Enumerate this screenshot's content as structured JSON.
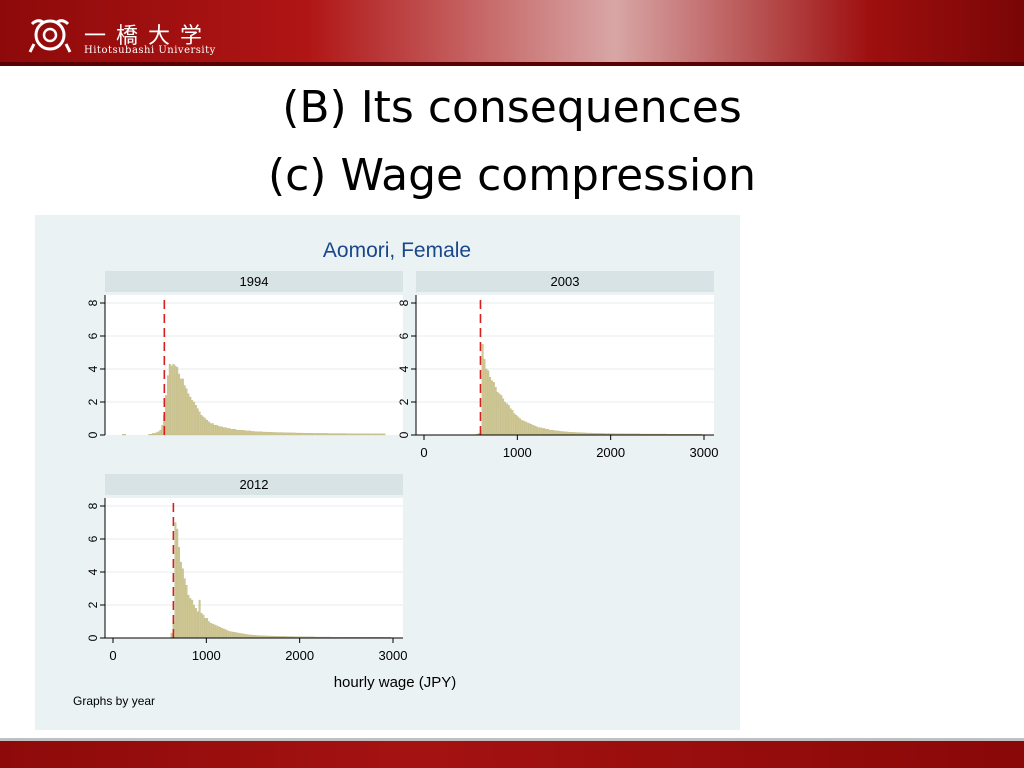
{
  "header": {
    "logo_jp": "一橋大学",
    "logo_en": "Hitotsubashi University"
  },
  "slide": {
    "title_line1": "(B) Its consequences",
    "title_line2": "(c) Wage compression"
  },
  "chart_data": {
    "type": "bar",
    "title": "Aomori, Female",
    "xlabel": "hourly wage (JPY)",
    "ylabel": "",
    "note": "Graphs by year",
    "xlim": [
      0,
      3000
    ],
    "ylim": [
      0,
      8
    ],
    "xticks": [
      0,
      1000,
      2000,
      3000
    ],
    "yticks": [
      0,
      2,
      4,
      6,
      8
    ],
    "grid": true,
    "bin_width": 20,
    "colors": {
      "bar": "#cfc894",
      "bar_edge": "#b9b27a",
      "min_wage_line": "#d42020",
      "strip": "#d8e3e6",
      "plot_bg": "#ffffff"
    },
    "panels": [
      {
        "year": "1994",
        "min_wage": 550,
        "bins_x": [
          0,
          20,
          40,
          60,
          80,
          100,
          120,
          140,
          160,
          180,
          200,
          220,
          240,
          260,
          280,
          300,
          320,
          340,
          360,
          380,
          400,
          420,
          440,
          460,
          480,
          500,
          520,
          540,
          560,
          580,
          600,
          620,
          640,
          660,
          680,
          700,
          720,
          740,
          760,
          780,
          800,
          820,
          840,
          860,
          880,
          900,
          920,
          940,
          960,
          980,
          1000,
          1020,
          1040,
          1060,
          1080,
          1100,
          1120,
          1140,
          1160,
          1180,
          1200,
          1220,
          1240,
          1260,
          1280,
          1300,
          1320,
          1340,
          1360,
          1380,
          1400,
          1420,
          1440,
          1460,
          1480,
          1500,
          1520,
          1540,
          1560,
          1580,
          1600,
          1620,
          1640,
          1660,
          1680,
          1700,
          1720,
          1740,
          1760,
          1780,
          1800,
          1820,
          1840,
          1860,
          1880,
          1900,
          1920,
          1940,
          1960,
          1980,
          2000,
          2020,
          2040,
          2060,
          2080,
          2100,
          2120,
          2140,
          2160,
          2180,
          2200,
          2220,
          2240,
          2260,
          2280,
          2300,
          2320,
          2340,
          2360,
          2380,
          2400,
          2420,
          2440,
          2460,
          2480,
          2500,
          2520,
          2540,
          2560,
          2580,
          2600,
          2620,
          2640,
          2660,
          2680,
          2700,
          2720,
          2740,
          2760,
          2780,
          2800,
          2820,
          2840,
          2860,
          2880,
          2900,
          2920,
          2940,
          2960,
          2980
        ],
        "density": [
          0,
          0,
          0,
          0,
          0,
          0.05,
          0.05,
          0,
          0,
          0,
          0,
          0,
          0,
          0,
          0,
          0,
          0,
          0,
          0,
          0.05,
          0.05,
          0.1,
          0.1,
          0.15,
          0.2,
          0.3,
          0.6,
          1.2,
          2.4,
          3.6,
          4.3,
          4.2,
          4.3,
          4.2,
          4.1,
          3.7,
          3.4,
          3.4,
          3.0,
          2.8,
          2.5,
          2.3,
          2.1,
          2.0,
          1.8,
          1.6,
          1.4,
          1.2,
          1.1,
          1.0,
          0.9,
          0.8,
          0.7,
          0.7,
          0.6,
          0.6,
          0.55,
          0.5,
          0.5,
          0.45,
          0.45,
          0.4,
          0.4,
          0.35,
          0.35,
          0.35,
          0.3,
          0.3,
          0.3,
          0.28,
          0.28,
          0.25,
          0.25,
          0.25,
          0.22,
          0.22,
          0.2,
          0.2,
          0.2,
          0.2,
          0.18,
          0.18,
          0.18,
          0.17,
          0.17,
          0.16,
          0.16,
          0.15,
          0.15,
          0.15,
          0.15,
          0.14,
          0.14,
          0.14,
          0.14,
          0.13,
          0.13,
          0.13,
          0.12,
          0.12,
          0.12,
          0.12,
          0.11,
          0.11,
          0.11,
          0.11,
          0.11,
          0.1,
          0.1,
          0.1,
          0.1,
          0.1,
          0.1,
          0.1,
          0.1,
          0.09,
          0.09,
          0.09,
          0.09,
          0.09,
          0.09,
          0.09,
          0.09,
          0.09,
          0.09,
          0.08,
          0.08,
          0.08,
          0.08,
          0.08,
          0.08,
          0.08,
          0.08,
          0.08,
          0.08,
          0.08,
          0.08,
          0.07,
          0.07,
          0.07,
          0.07,
          0.07,
          0.07,
          0.07,
          0.07,
          0.07
        ]
      },
      {
        "year": "2003",
        "min_wage": 605,
        "bins_x": [
          0,
          20,
          40,
          60,
          80,
          100,
          120,
          140,
          160,
          180,
          200,
          220,
          240,
          260,
          280,
          300,
          320,
          340,
          360,
          380,
          400,
          420,
          440,
          460,
          480,
          500,
          520,
          540,
          560,
          580,
          600,
          620,
          640,
          660,
          680,
          700,
          720,
          740,
          760,
          780,
          800,
          820,
          840,
          860,
          880,
          900,
          920,
          940,
          960,
          980,
          1000,
          1020,
          1040,
          1060,
          1080,
          1100,
          1120,
          1140,
          1160,
          1180,
          1200,
          1220,
          1240,
          1260,
          1280,
          1300,
          1320,
          1340,
          1360,
          1380,
          1400,
          1420,
          1440,
          1460,
          1480,
          1500,
          1520,
          1540,
          1560,
          1580,
          1600,
          1620,
          1640,
          1660,
          1680,
          1700,
          1720,
          1740,
          1760,
          1780,
          1800,
          1820,
          1840,
          1860,
          1880,
          1900,
          1920,
          1940,
          1960,
          1980,
          2000,
          2020,
          2040,
          2060,
          2080,
          2100,
          2120,
          2140,
          2160,
          2180,
          2200,
          2220,
          2240,
          2260,
          2280,
          2300,
          2320,
          2340,
          2360,
          2380,
          2400,
          2420,
          2440,
          2460,
          2480,
          2500,
          2520,
          2540,
          2560,
          2580,
          2600,
          2620,
          2640,
          2660,
          2680,
          2700,
          2720,
          2740,
          2760,
          2780,
          2800,
          2820,
          2840,
          2860,
          2880,
          2900,
          2920,
          2940,
          2960,
          2980
        ],
        "density": [
          0,
          0,
          0,
          0,
          0,
          0,
          0,
          0,
          0,
          0,
          0,
          0,
          0,
          0,
          0,
          0,
          0,
          0,
          0,
          0,
          0,
          0,
          0,
          0,
          0,
          0,
          0,
          0,
          0.05,
          0.1,
          0.3,
          5.5,
          4.6,
          4.0,
          3.9,
          3.5,
          3.3,
          3.2,
          2.9,
          2.6,
          2.5,
          2.4,
          2.2,
          2.0,
          1.9,
          1.8,
          1.6,
          1.5,
          1.3,
          1.2,
          1.1,
          1.0,
          0.9,
          0.85,
          0.8,
          0.75,
          0.7,
          0.65,
          0.6,
          0.55,
          0.5,
          0.45,
          0.45,
          0.4,
          0.4,
          0.35,
          0.35,
          0.3,
          0.3,
          0.28,
          0.26,
          0.25,
          0.24,
          0.22,
          0.21,
          0.2,
          0.19,
          0.18,
          0.17,
          0.16,
          0.16,
          0.15,
          0.15,
          0.14,
          0.14,
          0.13,
          0.13,
          0.12,
          0.12,
          0.12,
          0.11,
          0.11,
          0.11,
          0.1,
          0.1,
          0.1,
          0.1,
          0.09,
          0.09,
          0.09,
          0.09,
          0.09,
          0.08,
          0.08,
          0.08,
          0.08,
          0.08,
          0.08,
          0.07,
          0.07,
          0.07,
          0.07,
          0.07,
          0.07,
          0.07,
          0.07,
          0.06,
          0.06,
          0.06,
          0.06,
          0.06,
          0.06,
          0.06,
          0.06,
          0.06,
          0.06,
          0.06,
          0.06,
          0.06,
          0.06,
          0.05,
          0.05,
          0.05,
          0.05,
          0.05,
          0.05,
          0.05,
          0.05,
          0.05,
          0.05,
          0.05,
          0.05,
          0.05,
          0.05,
          0.05,
          0.05,
          0.05,
          0.05,
          0.05
        ]
      },
      {
        "year": "2012",
        "min_wage": 647,
        "bins_x": [
          0,
          20,
          40,
          60,
          80,
          100,
          120,
          140,
          160,
          180,
          200,
          220,
          240,
          260,
          280,
          300,
          320,
          340,
          360,
          380,
          400,
          420,
          440,
          460,
          480,
          500,
          520,
          540,
          560,
          580,
          600,
          620,
          640,
          660,
          680,
          700,
          720,
          740,
          760,
          780,
          800,
          820,
          840,
          860,
          880,
          900,
          920,
          940,
          960,
          980,
          1000,
          1020,
          1040,
          1060,
          1080,
          1100,
          1120,
          1140,
          1160,
          1180,
          1200,
          1220,
          1240,
          1260,
          1280,
          1300,
          1320,
          1340,
          1360,
          1380,
          1400,
          1420,
          1440,
          1460,
          1480,
          1500,
          1520,
          1540,
          1560,
          1580,
          1600,
          1620,
          1640,
          1660,
          1680,
          1700,
          1720,
          1740,
          1760,
          1780,
          1800,
          1820,
          1840,
          1860,
          1880,
          1900,
          1920,
          1940,
          1960,
          1980,
          2000,
          2020,
          2040,
          2060,
          2080,
          2100,
          2120,
          2140,
          2160,
          2180,
          2200,
          2220,
          2240,
          2260,
          2280,
          2300,
          2320,
          2340,
          2360,
          2380,
          2400,
          2420,
          2440,
          2460,
          2480,
          2500,
          2520,
          2540,
          2560,
          2580,
          2600,
          2620,
          2640,
          2660,
          2680,
          2700,
          2720,
          2740,
          2760,
          2780,
          2800,
          2820,
          2840,
          2860,
          2880,
          2900,
          2920,
          2940,
          2960,
          2980
        ],
        "density": [
          0,
          0,
          0,
          0,
          0,
          0,
          0,
          0,
          0,
          0,
          0,
          0,
          0,
          0,
          0,
          0,
          0,
          0,
          0,
          0,
          0,
          0,
          0,
          0,
          0,
          0,
          0,
          0,
          0,
          0,
          0,
          0.3,
          1.0,
          7.0,
          6.6,
          5.5,
          4.6,
          4.2,
          3.6,
          3.2,
          2.6,
          2.4,
          2.3,
          2.0,
          1.8,
          1.6,
          2.3,
          1.5,
          1.4,
          1.2,
          1.2,
          1.0,
          0.9,
          0.85,
          0.8,
          0.75,
          0.7,
          0.65,
          0.6,
          0.55,
          0.5,
          0.45,
          0.4,
          0.38,
          0.36,
          0.34,
          0.32,
          0.3,
          0.28,
          0.26,
          0.24,
          0.22,
          0.2,
          0.19,
          0.18,
          0.17,
          0.16,
          0.15,
          0.15,
          0.14,
          0.14,
          0.13,
          0.13,
          0.12,
          0.12,
          0.12,
          0.11,
          0.11,
          0.11,
          0.1,
          0.1,
          0.1,
          0.1,
          0.09,
          0.09,
          0.09,
          0.09,
          0.08,
          0.08,
          0.08,
          0.08,
          0.08,
          0.07,
          0.07,
          0.07,
          0.07,
          0.07,
          0.07,
          0.06,
          0.06,
          0.06,
          0.06,
          0.06,
          0.06,
          0.06,
          0.06,
          0.06,
          0.05,
          0.05,
          0.05,
          0.05,
          0.05,
          0.05,
          0.05,
          0.05,
          0.05,
          0.05,
          0.05,
          0.05,
          0.05,
          0.05,
          0.05,
          0.05,
          0.05,
          0.05,
          0.05,
          0.05,
          0.05,
          0.05,
          0.05,
          0.05,
          0.05,
          0.05,
          0.05,
          0.05,
          0.05,
          0.05,
          0.05,
          0.05
        ]
      }
    ]
  }
}
